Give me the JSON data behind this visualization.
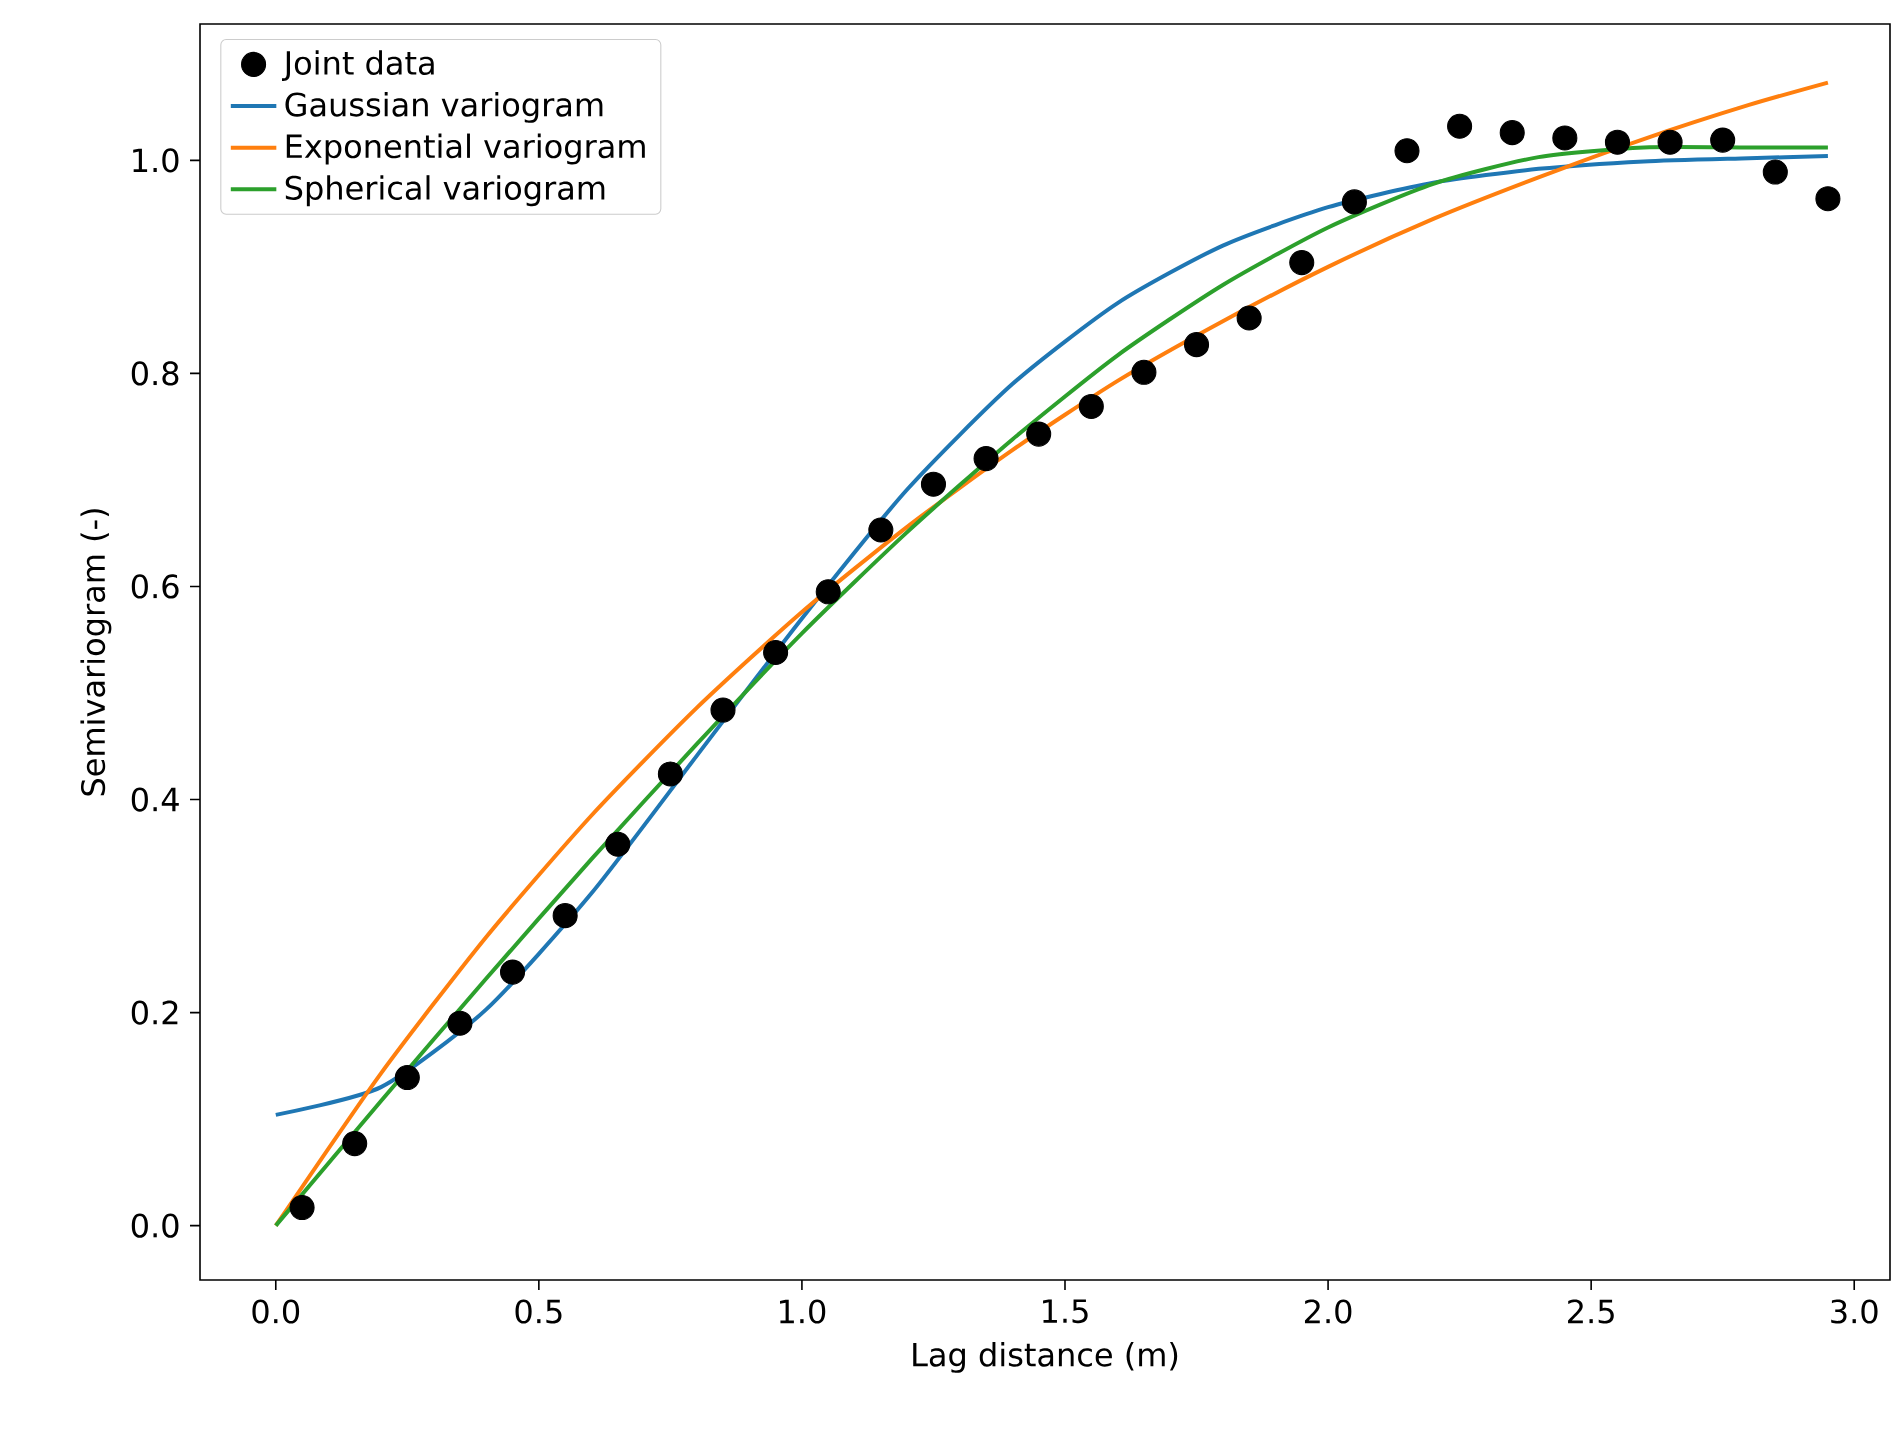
{
  "chart_data": {
    "type": "line",
    "xlabel": "Lag distance (m)",
    "ylabel": "Semivariogram (-)",
    "xlim": [
      -0.144,
      3.068
    ],
    "ylim": [
      -0.051,
      1.128
    ],
    "xticks": [
      {
        "value": 0,
        "label": "0.0"
      },
      {
        "value": 0.5,
        "label": "0.5"
      },
      {
        "value": 1,
        "label": "1.0"
      },
      {
        "value": 1.5,
        "label": "1.5"
      },
      {
        "value": 2,
        "label": "2.0"
      },
      {
        "value": 2.5,
        "label": "2.5"
      },
      {
        "value": 3,
        "label": "3.0"
      }
    ],
    "yticks": [
      {
        "value": 0,
        "label": "0.0"
      },
      {
        "value": 0.2,
        "label": "0.2"
      },
      {
        "value": 0.4,
        "label": "0.4"
      },
      {
        "value": 0.6,
        "label": "0.6"
      },
      {
        "value": 0.8,
        "label": "0.8"
      },
      {
        "value": 1,
        "label": "1.0"
      }
    ],
    "legend": "top left",
    "grid": false,
    "series": [
      {
        "name": "Joint data",
        "type": "scatter",
        "marker": "circle",
        "color": "#000000",
        "x": [
          0.05,
          0.15,
          0.25,
          0.35,
          0.45,
          0.55,
          0.65,
          0.75,
          0.85,
          0.95,
          1.05,
          1.15,
          1.25,
          1.35,
          1.45,
          1.55,
          1.65,
          1.75,
          1.85,
          1.95,
          2.05,
          2.15,
          2.25,
          2.35,
          2.45,
          2.55,
          2.65,
          2.75,
          2.85,
          2.95
        ],
        "values": [
          0.017,
          0.077,
          0.139,
          0.19,
          0.238,
          0.291,
          0.358,
          0.424,
          0.484,
          0.538,
          0.595,
          0.653,
          0.696,
          0.72,
          0.743,
          0.769,
          0.801,
          0.827,
          0.852,
          0.904,
          0.961,
          1.009,
          1.032,
          1.026,
          1.021,
          1.017,
          1.017,
          1.019,
          0.989,
          0.964
        ]
      },
      {
        "name": "Gaussian variogram",
        "color": "#1f77b4",
        "x": [
          0,
          0.2,
          0.4,
          0.6,
          0.8,
          1.0,
          1.2,
          1.4,
          1.6,
          1.8,
          2.0,
          2.2,
          2.4,
          2.6,
          2.8,
          2.95
        ],
        "values": [
          0.104,
          0.13,
          0.203,
          0.312,
          0.441,
          0.57,
          0.691,
          0.79,
          0.866,
          0.92,
          0.956,
          0.979,
          0.992,
          0.999,
          1.002,
          1.004
        ]
      },
      {
        "name": "Exponential variogram",
        "color": "#ff7f0e",
        "x": [
          0,
          0.2,
          0.4,
          0.6,
          0.8,
          1.0,
          1.2,
          1.4,
          1.6,
          1.8,
          2.0,
          2.2,
          2.4,
          2.6,
          2.8,
          2.95
        ],
        "values": [
          0,
          0.143,
          0.271,
          0.385,
          0.486,
          0.576,
          0.656,
          0.728,
          0.793,
          0.849,
          0.9,
          0.945,
          0.984,
          1.02,
          1.052,
          1.073
        ]
      },
      {
        "name": "Spherical variogram",
        "color": "#2ca02c",
        "x": [
          0,
          0.2,
          0.4,
          0.6,
          0.8,
          1.0,
          1.2,
          1.4,
          1.6,
          1.8,
          2.0,
          2.2,
          2.4,
          2.6,
          2.8,
          2.95
        ],
        "values": [
          0,
          0.117,
          0.232,
          0.344,
          0.452,
          0.556,
          0.651,
          0.738,
          0.817,
          0.883,
          0.937,
          0.978,
          1.003,
          1.012,
          1.012,
          1.012
        ]
      }
    ]
  }
}
